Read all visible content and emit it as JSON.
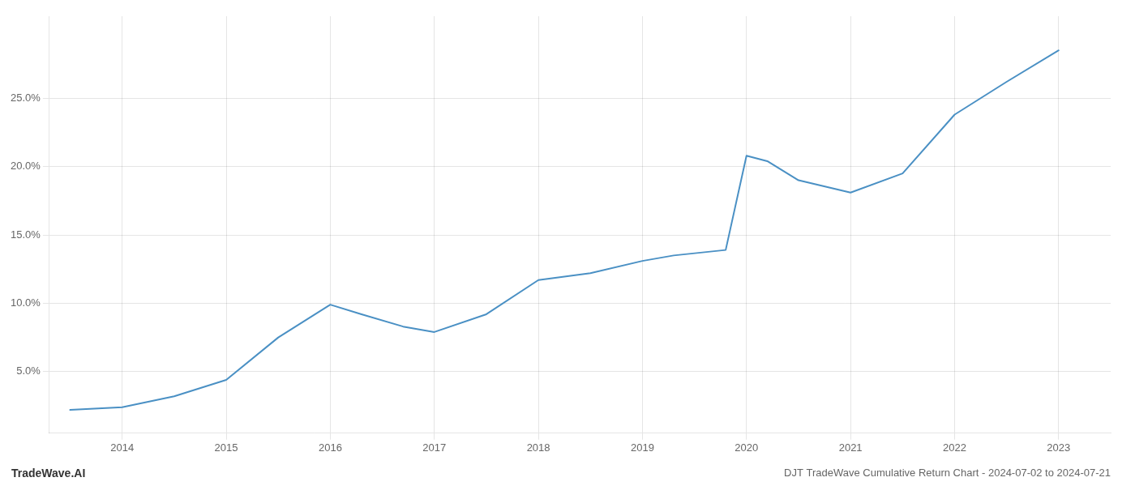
{
  "chart_data": {
    "type": "line",
    "title": "DJT TradeWave Cumulative Return Chart - 2024-07-02 to 2024-07-21",
    "annotations": [
      "TradeWave.AI"
    ],
    "x": [
      2013.5,
      2014.0,
      2014.5,
      2015.0,
      2015.5,
      2016.0,
      2016.3,
      2016.7,
      2017.0,
      2017.5,
      2018.0,
      2018.5,
      2019.0,
      2019.3,
      2019.8,
      2020.0,
      2020.2,
      2020.5,
      2021.0,
      2021.5,
      2022.0,
      2022.5,
      2023.0
    ],
    "values": [
      2.2,
      2.4,
      3.2,
      4.4,
      7.5,
      9.9,
      9.2,
      8.3,
      7.9,
      9.2,
      11.7,
      12.2,
      13.1,
      13.5,
      13.9,
      20.8,
      20.4,
      19.0,
      18.1,
      19.5,
      23.8,
      26.2,
      28.5
    ],
    "color": "#4a90c4",
    "xlim": [
      2013.3,
      2023.5
    ],
    "ylim": [
      0.5,
      31.0
    ],
    "xticks": [
      2014,
      2015,
      2016,
      2017,
      2018,
      2019,
      2020,
      2021,
      2022,
      2023
    ],
    "yticks": [
      {
        "value": 5.0,
        "label": "5.0%"
      },
      {
        "value": 10.0,
        "label": "10.0%"
      },
      {
        "value": 15.0,
        "label": "15.0%"
      },
      {
        "value": 20.0,
        "label": "20.0%"
      },
      {
        "value": 25.0,
        "label": "25.0%"
      }
    ],
    "grid": true
  }
}
